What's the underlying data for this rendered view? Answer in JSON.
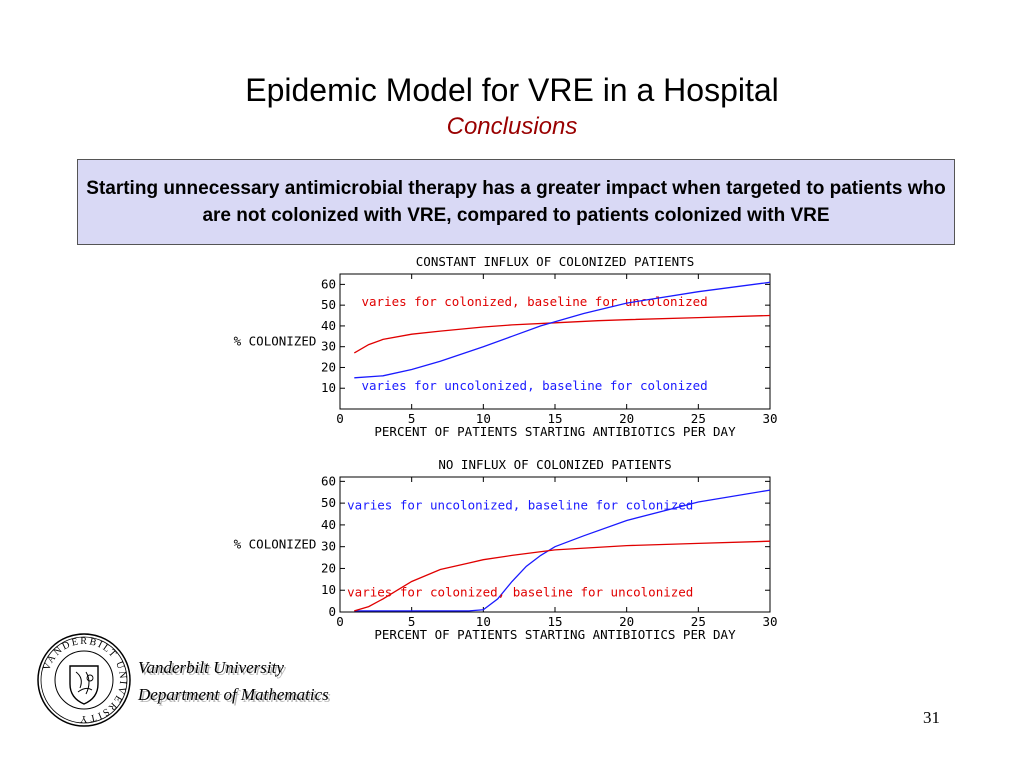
{
  "slide": {
    "title": "Epidemic Model for VRE in a Hospital",
    "subtitle": "Conclusions",
    "subtitle_color": "#990000",
    "callout": "Starting unnecessary antimicrobial therapy has a greater impact when targeted to patients who are not colonized with VRE, compared to patients colonized with VRE",
    "callout_bg": "#d9d9f5",
    "page_number": "31"
  },
  "footer": {
    "university": "Vanderbilt University",
    "department": "Department of Mathematics",
    "logo_ring_text": "VANDERBILT UNIVERSITY"
  },
  "chart_data": [
    {
      "type": "line",
      "title": "CONSTANT INFLUX OF COLONIZED PATIENTS",
      "xlabel": "PERCENT OF PATIENTS STARTING ANTIBIOTICS PER DAY",
      "ylabel": "% COLONIZED",
      "xlim": [
        0,
        30
      ],
      "ylim": [
        0,
        65
      ],
      "xticks": [
        0,
        5,
        10,
        15,
        20,
        25,
        30
      ],
      "yticks": [
        10,
        20,
        30,
        40,
        50,
        60
      ],
      "grid": false,
      "series": [
        {
          "name": "varies for colonized, baseline for uncolonized",
          "color": "#e00000",
          "x": [
            1,
            2,
            3,
            5,
            7,
            10,
            12,
            15,
            18,
            20,
            25,
            30
          ],
          "y": [
            27,
            31,
            33.5,
            36,
            37.5,
            39.5,
            40.5,
            41.5,
            42.5,
            43,
            44,
            45
          ],
          "label_at": [
            1.5,
            51.5
          ]
        },
        {
          "name": "varies for uncolonized, baseline for colonized",
          "color": "#1a1aff",
          "x": [
            1,
            3,
            5,
            7,
            10,
            12,
            14,
            15,
            17,
            20,
            25,
            30
          ],
          "y": [
            15,
            16,
            19,
            23,
            30,
            35,
            40,
            42,
            46,
            51,
            56.5,
            61
          ],
          "label_at": [
            1.5,
            11
          ]
        }
      ]
    },
    {
      "type": "line",
      "title": "NO INFLUX OF COLONIZED PATIENTS",
      "xlabel": "PERCENT OF PATIENTS STARTING ANTIBIOTICS PER DAY",
      "ylabel": "% COLONIZED",
      "xlim": [
        0,
        30
      ],
      "ylim": [
        0,
        62
      ],
      "xticks": [
        0,
        5,
        10,
        15,
        20,
        25,
        30
      ],
      "yticks": [
        0,
        10,
        20,
        30,
        40,
        50,
        60
      ],
      "grid": false,
      "series": [
        {
          "name": "varies for uncolonized, baseline for colonized",
          "color": "#1a1aff",
          "x": [
            1,
            5,
            9,
            10,
            11,
            12,
            13,
            14,
            15,
            17,
            20,
            25,
            30
          ],
          "y": [
            0.5,
            0.5,
            0.5,
            1,
            6,
            14,
            21,
            26,
            30,
            35,
            42,
            50.5,
            56
          ],
          "label_at": [
            0.5,
            49
          ]
        },
        {
          "name": "varies for colonized, baseline for uncolonized",
          "color": "#e00000",
          "x": [
            1,
            2,
            3,
            4,
            5,
            7,
            9,
            10,
            12,
            15,
            20,
            25,
            30
          ],
          "y": [
            0.5,
            2.5,
            6,
            10,
            14,
            19.5,
            22.5,
            24,
            26,
            28.5,
            30.5,
            31.5,
            32.5
          ],
          "label_at": [
            0.5,
            9
          ]
        }
      ]
    }
  ]
}
